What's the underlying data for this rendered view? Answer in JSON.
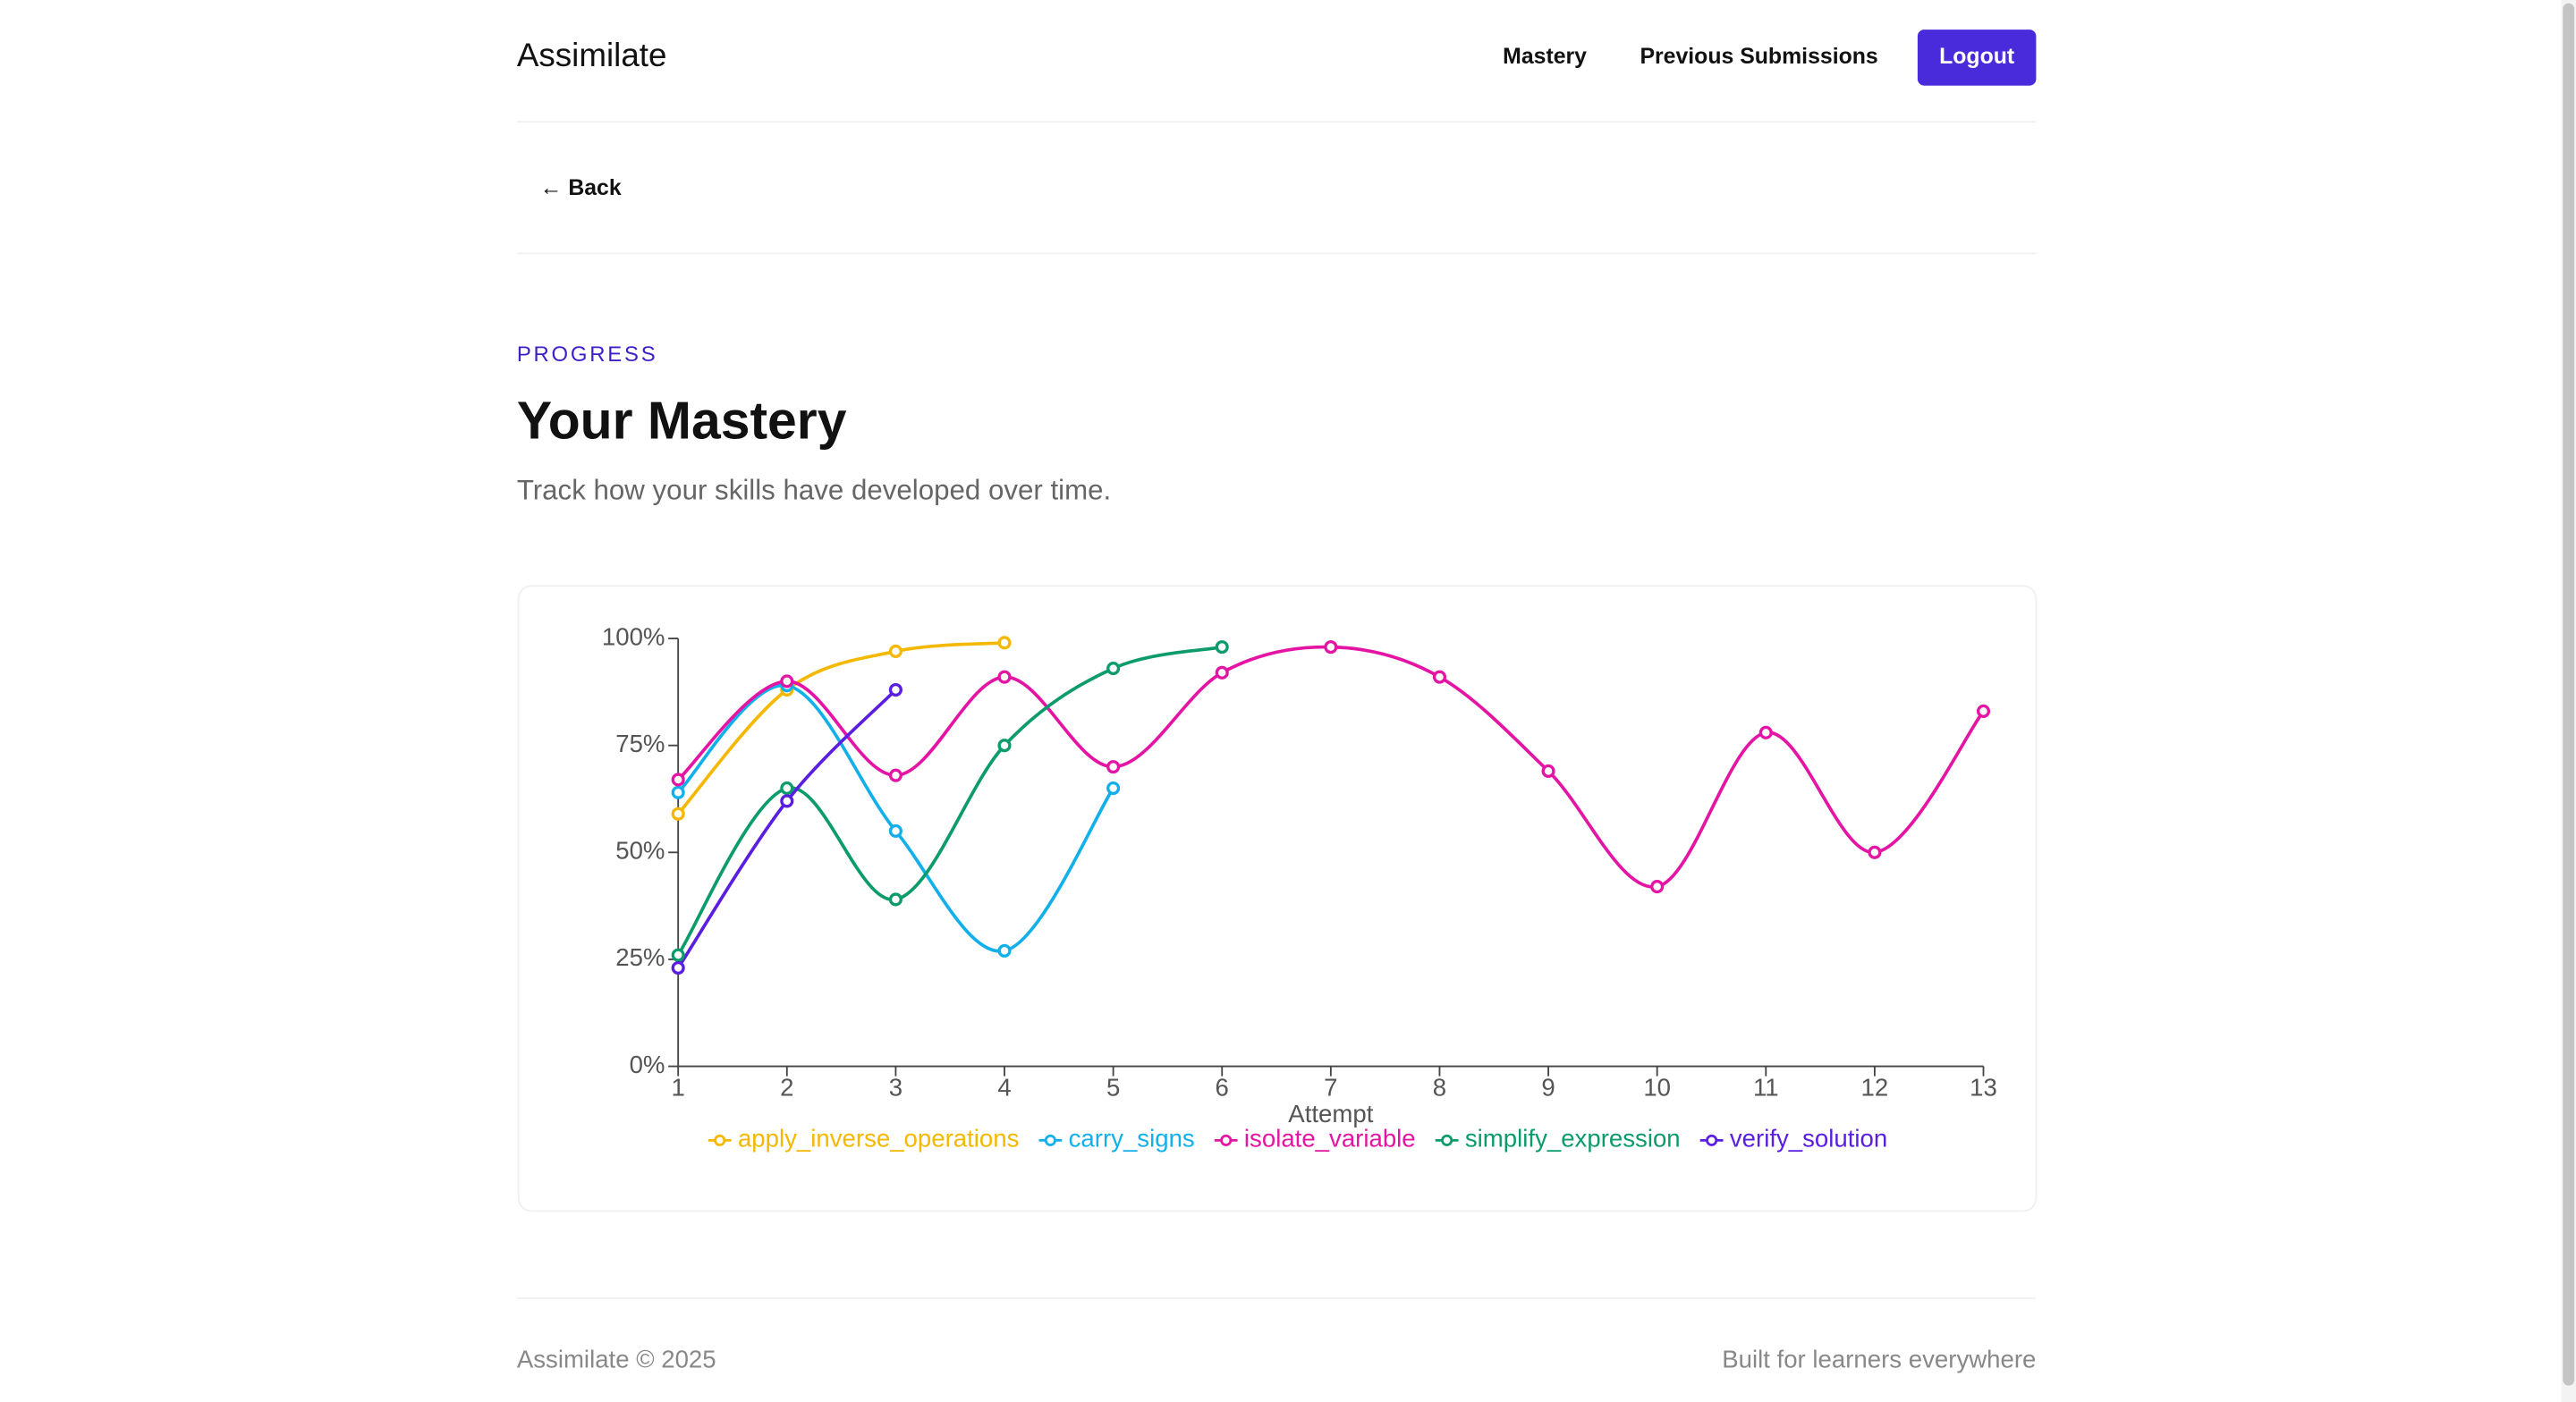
{
  "header": {
    "brand": "Assimilate",
    "nav": [
      "Mastery",
      "Previous Submissions"
    ],
    "logout": "Logout"
  },
  "back": "← Back",
  "eyebrow": "PROGRESS",
  "title": "Your Mastery",
  "subtitle": "Track how your skills have developed over time.",
  "chart_data": {
    "type": "line",
    "x_label": "Attempt",
    "x": [
      1,
      2,
      3,
      4,
      5,
      6,
      7,
      8,
      9,
      10,
      11,
      12,
      13
    ],
    "xlim": [
      1,
      13
    ],
    "xticks": [
      1,
      2,
      3,
      4,
      5,
      6,
      7,
      8,
      9,
      10,
      11,
      12,
      13
    ],
    "ylim": [
      0,
      100
    ],
    "yticks": [
      {
        "value": 0,
        "label": "0%"
      },
      {
        "value": 25,
        "label": "25%"
      },
      {
        "value": 50,
        "label": "50%"
      },
      {
        "value": 75,
        "label": "75%"
      },
      {
        "value": 100,
        "label": "100%"
      }
    ],
    "legend": "bottom",
    "series": [
      {
        "name": "apply_inverse_operations",
        "color": "#f5b800",
        "values": [
          59,
          88,
          97,
          99,
          null,
          null,
          null,
          null,
          null,
          null,
          null,
          null,
          null
        ]
      },
      {
        "name": "carry_signs",
        "color": "#12b0ea",
        "values": [
          64,
          89,
          55,
          27,
          65,
          null,
          null,
          null,
          null,
          null,
          null,
          null,
          null
        ]
      },
      {
        "name": "isolate_variable",
        "color": "#e414a4",
        "values": [
          67,
          90,
          68,
          91,
          70,
          92,
          98,
          91,
          69,
          42,
          78,
          50,
          83
        ]
      },
      {
        "name": "simplify_expression",
        "color": "#0c9b6a",
        "values": [
          26,
          65,
          39,
          75,
          93,
          98,
          null,
          null,
          null,
          null,
          null,
          null,
          null
        ]
      },
      {
        "name": "verify_solution",
        "color": "#5a1ee0",
        "values": [
          23,
          62,
          88,
          null,
          null,
          null,
          null,
          null,
          null,
          null,
          null,
          null,
          null
        ]
      }
    ]
  },
  "footer": {
    "left": "Assimilate © 2025",
    "right": "Built for learners everywhere"
  }
}
